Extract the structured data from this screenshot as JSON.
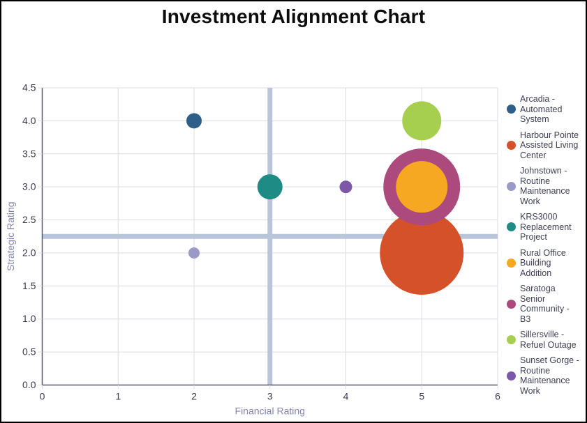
{
  "window": {
    "title": "Investment Alignment Chart"
  },
  "chart_data": {
    "type": "scatter",
    "subtype": "bubble",
    "title": "Investment Alignment Chart",
    "xlabel": "Financial Rating",
    "ylabel": "Strategic Rating",
    "xlim": [
      0,
      6
    ],
    "ylim": [
      0,
      4.5
    ],
    "x_tick_labels": [
      "0",
      "1",
      "2",
      "3",
      "4",
      "5",
      "6"
    ],
    "y_tick_labels": [
      "0.0",
      "0.5",
      "1.0",
      "1.5",
      "2.0",
      "2.5",
      "3.0",
      "3.5",
      "4.0",
      "4.5"
    ],
    "grid": true,
    "legend_position": "right",
    "reference_lines": {
      "vertical_x": 3,
      "horizontal_y": 2.25,
      "color": "#b9c5d8"
    },
    "series": [
      {
        "name": "Arcadia - Automated System",
        "legend_lines": "Arcadia -\nAutomated\nSystem",
        "x": 2,
        "y": 4,
        "radius_px": 11,
        "color": "#2d5f8a"
      },
      {
        "name": "Harbour Pointe Assisted Living Center",
        "legend_lines": "Harbour Pointe\nAssisted Living\nCenter",
        "x": 5,
        "y": 2,
        "radius_px": 60,
        "color": "#d4512a"
      },
      {
        "name": "Johnstown - Routine Maintenance Work",
        "legend_lines": "Johnstown -\nRoutine\nMaintenance\nWork",
        "x": 2,
        "y": 2,
        "radius_px": 8,
        "color": "#9b9ac6"
      },
      {
        "name": "KRS3000 Replacement Project",
        "legend_lines": "KRS3000\nReplacement\nProject",
        "x": 3,
        "y": 3,
        "radius_px": 18,
        "color": "#1e8c84"
      },
      {
        "name": "Rural Office Building Addition",
        "legend_lines": "Rural Office\nBuilding\nAddition",
        "x": 5,
        "y": 3,
        "radius_px": 37,
        "color": "#f7a822"
      },
      {
        "name": "Saratoga Senior Community - B3",
        "legend_lines": "Saratoga\nSenior\nCommunity -\nB3",
        "x": 5,
        "y": 3,
        "radius_px": 55,
        "color": "#ac4a7e"
      },
      {
        "name": "Sillersville - Refuel Outage",
        "legend_lines": "Sillersville -\nRefuel Outage",
        "x": 5,
        "y": 4,
        "radius_px": 28,
        "color": "#a6cf4f"
      },
      {
        "name": "Sunset Gorge - Routine Maintenance Work",
        "legend_lines": "Sunset Gorge -\nRoutine\nMaintenance\nWork",
        "x": 4,
        "y": 3,
        "radius_px": 9,
        "color": "#7e58a8"
      }
    ],
    "colors": {
      "gridline": "#dcdce4",
      "axis_line": "#55556b",
      "tick_label": "#3b3b4f",
      "axis_title": "#8585b2",
      "reference_line": "#b9c5d8",
      "title_text": "#0d0d0d"
    }
  }
}
